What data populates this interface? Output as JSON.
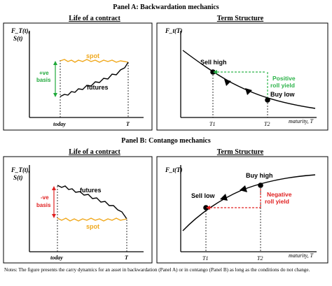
{
  "panel_a": {
    "title": "Panel A: Backwardation mechanics",
    "left": {
      "title": "Life of a contract",
      "y_label_1": "F_T(t),",
      "y_label_2": "S(t)",
      "spot_label": "spot",
      "futures_label": "futures",
      "basis_label_1": "+ve",
      "basis_label_2": "basis",
      "x_label_today": "today",
      "x_label_T": "T"
    },
    "right": {
      "title": "Term Structure",
      "y_label": "F_t(T)",
      "point_high": "Sell high",
      "point_low": "Buy low",
      "yield_label_1": "Positive",
      "yield_label_2": "roll yield",
      "x_tick_1": "T1",
      "x_tick_2": "T2",
      "x_label": "maturity, T"
    }
  },
  "panel_b": {
    "title": "Panel B: Contango mechanics",
    "left": {
      "title": "Life of a contract",
      "y_label_1": "F_T(t),",
      "y_label_2": "S(t)",
      "spot_label": "spot",
      "futures_label": "futures",
      "basis_label_1": "-ve",
      "basis_label_2": "basis",
      "x_label_today": "today",
      "x_label_T": "T"
    },
    "right": {
      "title": "Term Structure",
      "y_label": "F_t(T)",
      "point_high": "Buy high",
      "point_low": "Sell low",
      "yield_label_1": "Negative",
      "yield_label_2": "roll yield",
      "x_tick_1": "T1",
      "x_tick_2": "T2",
      "x_label": "maturity, T"
    }
  },
  "notes": "Notes: The figure presents the carry dynamics for an asset in backwardation (Panel A) or in contango (Panel B) as long as the conditions do not change.",
  "colors": {
    "spot": "#f0a81c",
    "basis_positive": "#1fa83a",
    "yield_positive": "#2db34a",
    "basis_negative": "#e02020",
    "yield_negative": "#e02020",
    "line": "#000000"
  }
}
